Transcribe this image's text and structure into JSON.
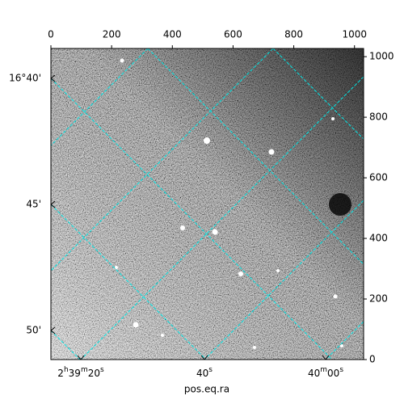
{
  "chart_data": {
    "type": "image",
    "xlabel": "pos.eq.ra",
    "xlim": [
      0,
      1030
    ],
    "ylim": [
      0,
      1027
    ],
    "xticks": [
      0,
      200,
      400,
      600,
      800,
      1000
    ],
    "yticks": [
      0,
      200,
      400,
      600,
      800,
      1000
    ],
    "ra_ticks": [
      "2h39m20s",
      "40s",
      "40m00s"
    ],
    "dec_ticks": [
      "16°40'",
      "45'",
      "50'"
    ],
    "grid_color": "#00e5e5"
  }
}
